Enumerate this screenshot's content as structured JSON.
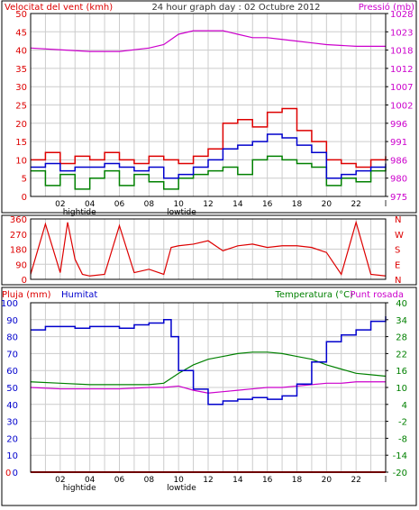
{
  "header": {
    "wind_title": "Velocitat del vent (kmh)",
    "graph_title": "24 hour graph day : 02 Octubre 2012",
    "pressure_title": "Pressió (mb)"
  },
  "bottom_header": {
    "rain_label": "Pluja (mm)",
    "humidity_label": "Humitat",
    "temp_label": "Temperatura (°C)",
    "dew_label": "Punt rosada"
  },
  "colors": {
    "wind_gust": "#dd0000",
    "wind_avg": "#0000cc",
    "wind_min": "#008000",
    "pressure": "#cc00cc",
    "direction": "#dd0000",
    "humidity": "#0000cc",
    "temperature": "#008000",
    "dew": "#cc00cc",
    "rain": "#dd0000",
    "grid": "#cccccc"
  },
  "x_ticks": [
    "02",
    "04",
    "06",
    "08",
    "10",
    "12",
    "14",
    "16",
    "18",
    "20",
    "22",
    "l"
  ],
  "tide_labels": [
    {
      "text": "hightide",
      "hour": 3.3
    },
    {
      "text": "lowtide",
      "hour": 10.2
    },
    {
      "text": "hightide",
      "hour": 3.3
    },
    {
      "text": "lowtide",
      "hour": 10.2
    }
  ],
  "chart_data": [
    {
      "type": "line",
      "name": "wind",
      "xlim": [
        0,
        24
      ],
      "ylim": [
        0,
        50
      ],
      "y_ticks": [
        0,
        5,
        10,
        15,
        20,
        25,
        30,
        35,
        40,
        45,
        50
      ],
      "pressure_ticks": [
        975,
        980,
        986,
        991,
        996,
        1002,
        1007,
        1012,
        1018,
        1023,
        1028
      ],
      "pressure_lim": [
        975,
        1028
      ],
      "series": [
        {
          "key": "gust",
          "x": [
            0,
            1,
            2,
            3,
            4,
            5,
            6,
            7,
            8,
            9,
            10,
            11,
            12,
            13,
            14,
            15,
            16,
            17,
            18,
            19,
            20,
            21,
            22,
            23,
            24
          ],
          "values": [
            10,
            12,
            9,
            11,
            10,
            12,
            10,
            9,
            11,
            10,
            9,
            11,
            13,
            20,
            21,
            19,
            23,
            24,
            18,
            15,
            10,
            9,
            8,
            10,
            11
          ]
        },
        {
          "key": "avg",
          "x": [
            0,
            1,
            2,
            3,
            4,
            5,
            6,
            7,
            8,
            9,
            10,
            11,
            12,
            13,
            14,
            15,
            16,
            17,
            18,
            19,
            20,
            21,
            22,
            23,
            24
          ],
          "values": [
            8,
            9,
            7,
            8,
            8,
            9,
            8,
            7,
            8,
            5,
            6,
            8,
            10,
            13,
            14,
            15,
            17,
            16,
            14,
            12,
            5,
            6,
            7,
            8,
            9
          ]
        },
        {
          "key": "min",
          "x": [
            0,
            1,
            2,
            3,
            4,
            5,
            6,
            7,
            8,
            9,
            10,
            11,
            12,
            13,
            14,
            15,
            16,
            17,
            18,
            19,
            20,
            21,
            22,
            23,
            24
          ],
          "values": [
            7,
            3,
            6,
            2,
            5,
            7,
            3,
            6,
            4,
            2,
            5,
            6,
            7,
            8,
            6,
            10,
            11,
            10,
            9,
            8,
            3,
            5,
            4,
            7,
            8
          ]
        },
        {
          "key": "pressure",
          "x": [
            0,
            2,
            4,
            6,
            8,
            9,
            10,
            11,
            12,
            13,
            14,
            15,
            16,
            17,
            18,
            19,
            20,
            22,
            24
          ],
          "values": [
            1018,
            1017.5,
            1017,
            1017,
            1018,
            1019,
            1022,
            1023,
            1023,
            1023,
            1022,
            1021,
            1021,
            1020.5,
            1020,
            1019.5,
            1019,
            1018.5,
            1018.5
          ]
        }
      ]
    },
    {
      "type": "line",
      "name": "wind-direction",
      "xlim": [
        0,
        24
      ],
      "ylim": [
        0,
        360
      ],
      "y_ticks": [
        0,
        90,
        180,
        270,
        360
      ],
      "compass": [
        "N",
        "W",
        "S",
        "E",
        "N"
      ],
      "series": [
        {
          "key": "direction",
          "x": [
            0,
            1,
            2,
            2.5,
            3,
            3.5,
            4,
            5,
            6,
            7,
            8,
            9,
            9.5,
            10,
            11,
            12,
            13,
            14,
            15,
            16,
            17,
            18,
            19,
            20,
            21,
            22,
            23,
            24
          ],
          "values": [
            30,
            330,
            40,
            340,
            120,
            30,
            20,
            30,
            320,
            40,
            60,
            30,
            190,
            200,
            210,
            230,
            170,
            200,
            210,
            190,
            200,
            200,
            190,
            160,
            30,
            340,
            30,
            20
          ]
        }
      ]
    },
    {
      "type": "line",
      "name": "humidity-temperature",
      "xlim": [
        0,
        24
      ],
      "ylim": [
        0,
        100
      ],
      "y_ticks": [
        0,
        10,
        20,
        30,
        40,
        50,
        60,
        70,
        80,
        90,
        100
      ],
      "temp_ticks": [
        -20,
        -14,
        -8,
        -2,
        4,
        10,
        16,
        22,
        28,
        34,
        40
      ],
      "temp_lim": [
        -20,
        40
      ],
      "series": [
        {
          "key": "humidity",
          "x": [
            0,
            1,
            2,
            3,
            4,
            5,
            6,
            7,
            8,
            9,
            9.5,
            10,
            11,
            12,
            13,
            14,
            15,
            16,
            17,
            18,
            19,
            20,
            21,
            22,
            23,
            24
          ],
          "values": [
            84,
            86,
            86,
            85,
            86,
            86,
            85,
            87,
            88,
            90,
            80,
            60,
            49,
            40,
            42,
            43,
            44,
            43,
            45,
            52,
            65,
            77,
            81,
            84,
            89,
            92
          ]
        },
        {
          "key": "temperature",
          "x": [
            0,
            2,
            4,
            6,
            8,
            9,
            10,
            11,
            12,
            13,
            14,
            15,
            16,
            17,
            18,
            19,
            20,
            21,
            22,
            23,
            24
          ],
          "values": [
            12,
            11.5,
            11,
            11,
            11,
            11.5,
            15,
            18,
            20,
            21,
            22,
            22.5,
            22.5,
            22,
            21,
            20,
            18,
            16.5,
            15,
            14.5,
            14
          ]
        },
        {
          "key": "dew",
          "x": [
            0,
            2,
            4,
            6,
            8,
            9,
            10,
            11,
            12,
            13,
            14,
            15,
            16,
            17,
            18,
            19,
            20,
            21,
            22,
            23,
            24
          ],
          "values": [
            10,
            9.5,
            9.5,
            9.5,
            10,
            10,
            10.5,
            9,
            8,
            8.5,
            9,
            9.5,
            10,
            10,
            10.5,
            11,
            11.5,
            11.5,
            12,
            12,
            12
          ]
        },
        {
          "key": "rain",
          "x": [
            0,
            24
          ],
          "values": [
            0,
            0
          ]
        }
      ]
    }
  ]
}
